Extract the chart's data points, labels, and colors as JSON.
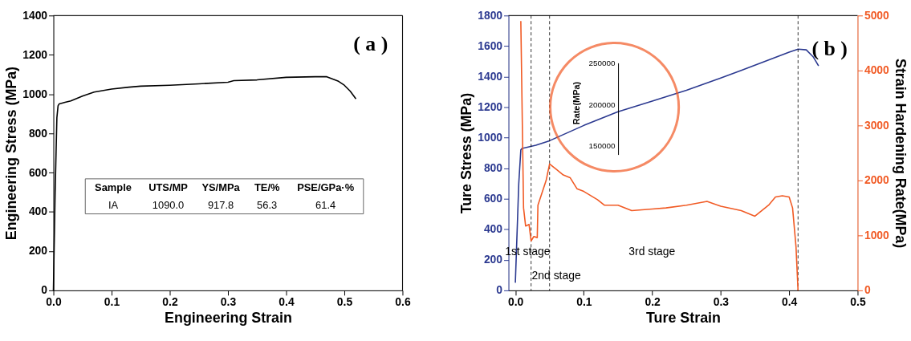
{
  "chart_data": [
    {
      "type": "line",
      "title": "( a )",
      "xlabel": "Engineering Strain",
      "ylabel": "Engineering Stress (MPa)",
      "x": [
        0,
        0.003,
        0.006,
        0.008,
        0.01,
        0.02,
        0.03,
        0.05,
        0.07,
        0.1,
        0.13,
        0.15,
        0.2,
        0.25,
        0.3,
        0.31,
        0.35,
        0.4,
        0.45,
        0.47,
        0.49,
        0.5,
        0.51,
        0.52
      ],
      "series": [
        {
          "color": "#000000",
          "values": [
            0,
            500,
            880,
            940,
            950,
            958,
            965,
            990,
            1010,
            1025,
            1035,
            1040,
            1045,
            1052,
            1060,
            1068,
            1072,
            1085,
            1088,
            1088,
            1065,
            1045,
            1015,
            975
          ]
        }
      ],
      "xlim": [
        0,
        0.6
      ],
      "xticks": [
        {
          "value": 0,
          "label": "0.0"
        },
        0.1,
        0.2,
        0.3,
        0.4,
        0.5,
        0.6
      ],
      "ylim": [
        0,
        1400
      ],
      "yticks": [
        0,
        200,
        400,
        600,
        800,
        1000,
        1200,
        1400
      ],
      "annotations": [
        "Sample",
        "UTS/MP",
        "YS/MPa",
        "TE/%",
        "PSE/GPa·%",
        "IA",
        "1090.0",
        "917.8",
        "56.3",
        "61.4"
      ],
      "grid": false,
      "line_style": "solid",
      "marker": "none"
    },
    {
      "type": "line",
      "title": "( b )",
      "xlabel": "Ture Strain",
      "ylabel": "Ture Stress (MPa)",
      "y2label": "Strain Hardening Rate(MPa)",
      "series": [
        {
          "color": "#2b3990",
          "x": [
            0,
            0.005,
            0.008,
            0.01,
            0.03,
            0.05,
            0.1,
            0.15,
            0.2,
            0.25,
            0.3,
            0.33,
            0.4,
            0.413,
            0.425,
            0.435,
            0.443
          ],
          "values": [
            50,
            700,
            920,
            930,
            950,
            980,
            1080,
            1170,
            1240,
            1310,
            1390,
            1440,
            1560,
            1580,
            1575,
            1530,
            1470
          ]
        },
        {
          "color": "#f15a24",
          "axis": "y2",
          "x": [
            0.008,
            0.012,
            0.015,
            0.02,
            0.023,
            0.027,
            0.032,
            0.033,
            0.045,
            0.05,
            0.06,
            0.07,
            0.08,
            0.09,
            0.1,
            0.12,
            0.13,
            0.15,
            0.17,
            0.2,
            0.22,
            0.25,
            0.28,
            0.3,
            0.33,
            0.35,
            0.37,
            0.38,
            0.39,
            0.4,
            0.405,
            0.41,
            0.413
          ],
          "values": [
            4900,
            1500,
            1170,
            1200,
            900,
            980,
            960,
            1550,
            2000,
            2300,
            2200,
            2100,
            2050,
            1850,
            1800,
            1650,
            1550,
            1550,
            1450,
            1480,
            1500,
            1550,
            1620,
            1530,
            1450,
            1350,
            1550,
            1700,
            1720,
            1700,
            1500,
            800,
            0
          ]
        }
      ],
      "xlim": [
        -0.01,
        0.5
      ],
      "xticks": [
        {
          "value": 0,
          "label": "0.0"
        },
        0.1,
        0.2,
        0.3,
        0.4,
        0.5
      ],
      "ylim": [
        0,
        1800
      ],
      "yticks": [
        0,
        200,
        400,
        600,
        800,
        1000,
        1200,
        1400,
        1600,
        1800
      ],
      "y2lim": [
        0,
        5000
      ],
      "y2ticks": [
        0,
        1000,
        2000,
        3000,
        4000,
        5000
      ],
      "ref_lines": [
        {
          "axis": "x",
          "value": 0.023,
          "line_style": "dashed"
        },
        {
          "axis": "x",
          "value": 0.05,
          "line_style": "dashed"
        },
        {
          "axis": "x",
          "value": 0.413,
          "line_style": "dashed"
        }
      ],
      "annotations": [
        "250000",
        "200000",
        "150000",
        "Rate(MPa)",
        "1st stage",
        "2nd stage",
        "3rd stage"
      ],
      "grid": false,
      "line_style": "solid",
      "marker": "none"
    }
  ]
}
